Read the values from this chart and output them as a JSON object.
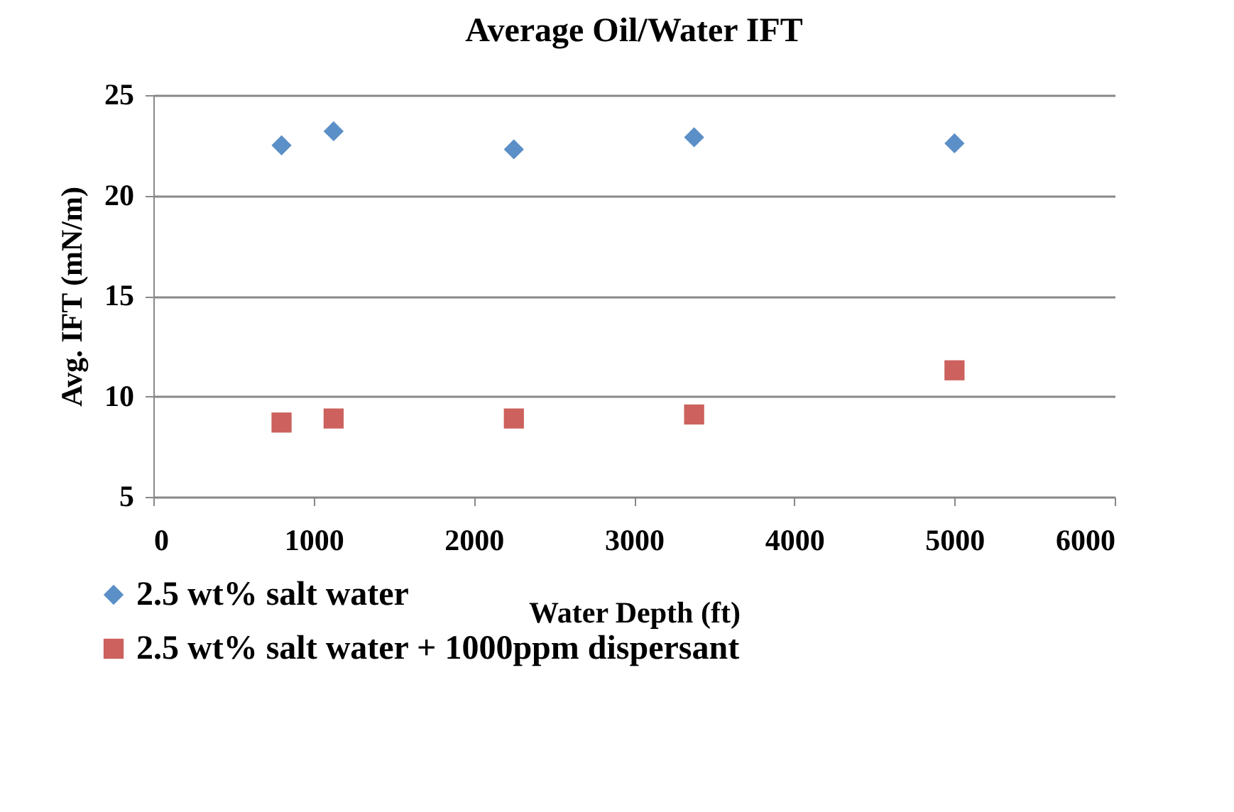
{
  "chart_data": {
    "type": "scatter",
    "title": "Average Oil/Water IFT",
    "xlabel": "Water Depth (ft)",
    "ylabel": "Avg. IFT (mN/m)",
    "x": [
      800,
      1125,
      2250,
      3375,
      5000
    ],
    "series": [
      {
        "name": "2.5 wt% salt water",
        "color": "#5b8fc7",
        "marker": "diamond",
        "values": [
          22.5,
          23.2,
          22.3,
          22.9,
          22.6
        ]
      },
      {
        "name": "2.5 wt% salt water + 1000ppm dispersant",
        "color": "#cc615d",
        "marker": "square",
        "values": [
          8.7,
          8.9,
          8.9,
          9.1,
          11.3
        ]
      }
    ],
    "xlim": [
      0,
      6000
    ],
    "xticks": [
      0,
      1000,
      2000,
      3000,
      4000,
      5000,
      6000
    ],
    "ylim": [
      5,
      25
    ],
    "yticks": [
      5,
      10,
      15,
      20,
      25
    ],
    "grid": "y",
    "legend": "bottom left"
  }
}
